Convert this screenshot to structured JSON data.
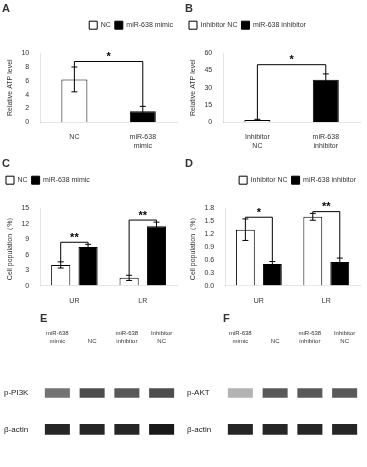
{
  "chart_data": [
    {
      "type": "bar",
      "title": "A",
      "categories": [
        "NC",
        "miR-638\nmimic"
      ],
      "series": [
        {
          "name": "NC",
          "color": "white",
          "values": [
            6.2,
            null
          ],
          "errors": [
            1.8,
            null
          ]
        },
        {
          "name": "miR-638 mimic",
          "color": "black",
          "values": [
            null,
            1.6
          ],
          "errors": [
            null,
            0.7
          ]
        }
      ],
      "ylabel": "Relative ATP level",
      "ylim": [
        0,
        10
      ],
      "yticks": [
        0,
        2,
        4,
        6,
        8,
        10
      ],
      "grid": false,
      "legend": "upper right",
      "annotations": [
        {
          "text": "*",
          "y": 8.8,
          "between": [
            "NC",
            "miR-638\nmimic"
          ]
        }
      ]
    },
    {
      "type": "bar",
      "title": "B",
      "categories": [
        "Inhibitor\nNC",
        "miR-638\ninhibitor"
      ],
      "series": [
        {
          "name": "Inhibitor NC",
          "color": "white",
          "values": [
            2.0,
            null
          ],
          "errors": [
            0.5,
            null
          ]
        },
        {
          "name": "miR-638 inhibitor",
          "color": "black",
          "values": [
            null,
            37.0
          ],
          "errors": [
            null,
            5.0
          ]
        }
      ],
      "ylabel": "Relative ATP level",
      "ylim": [
        0,
        60
      ],
      "yticks": [
        0,
        15,
        30,
        45,
        60
      ],
      "grid": false,
      "legend": "upper left",
      "annotations": [
        {
          "text": "*",
          "y": 50,
          "between": [
            "Inhibitor\nNC",
            "miR-638\ninhibitor"
          ]
        }
      ]
    },
    {
      "type": "bar",
      "title": "C",
      "categories": [
        "UR",
        "LR"
      ],
      "series": [
        {
          "name": "NC",
          "color": "white",
          "values": [
            4.0,
            1.5
          ],
          "errors": [
            0.6,
            0.5
          ]
        },
        {
          "name": "miR-638 mimic",
          "color": "black",
          "values": [
            7.5,
            11.5
          ],
          "errors": [
            0.5,
            0.8
          ]
        }
      ],
      "ylabel": "Cell population（%）",
      "ylim": [
        0,
        15
      ],
      "yticks": [
        0,
        3,
        6,
        9,
        12,
        15
      ],
      "grid": false,
      "legend": "upper left",
      "annotations": [
        {
          "text": "**",
          "y": 8.4,
          "category": "UR"
        },
        {
          "text": "**",
          "y": 12.7,
          "category": "LR"
        }
      ]
    },
    {
      "type": "bar",
      "title": "D",
      "categories": [
        "UR",
        "LR"
      ],
      "series": [
        {
          "name": "Inhibitor NC",
          "color": "white",
          "values": [
            1.3,
            1.6
          ],
          "errors": [
            0.25,
            0.08
          ]
        },
        {
          "name": "miR-638 inhibitor",
          "color": "black",
          "values": [
            0.5,
            0.55
          ],
          "errors": [
            0.06,
            0.09
          ]
        }
      ],
      "ylabel": "Cell population（%）",
      "ylim": [
        0,
        1.8
      ],
      "yticks": [
        {
          "value": 0,
          "label": "0.0"
        },
        0.3,
        0.6,
        0.9,
        1.2,
        1.5,
        1.8
      ],
      "grid": false,
      "legend": "upper right",
      "annotations": [
        {
          "text": "*",
          "y": 1.59,
          "category": "UR"
        },
        {
          "text": "**",
          "y": 1.72,
          "category": "LR"
        }
      ]
    },
    {
      "type": "blot",
      "title": "E",
      "categories": [
        "miR-638\nmimic",
        "NC",
        "miR-638\ninhibitor",
        "Inhibitor\nNC"
      ],
      "series": [
        {
          "name": "p-PI3K",
          "values": [
            0.55,
            0.7,
            0.65,
            0.7
          ]
        },
        {
          "name": "β-actin",
          "values": [
            0.85,
            0.85,
            0.85,
            0.9
          ]
        }
      ],
      "tick_labels": "x"
    },
    {
      "type": "blot",
      "title": "F",
      "categories": [
        "miR-638\nmimic",
        "NC",
        "miR-638\ninhibitor",
        "Inhibitor\nNC"
      ],
      "series": [
        {
          "name": "p-AKT",
          "values": [
            0.3,
            0.65,
            0.65,
            0.65
          ]
        },
        {
          "name": "β-actin",
          "values": [
            0.85,
            0.85,
            0.85,
            0.85
          ]
        }
      ],
      "tick_labels": "x"
    }
  ]
}
